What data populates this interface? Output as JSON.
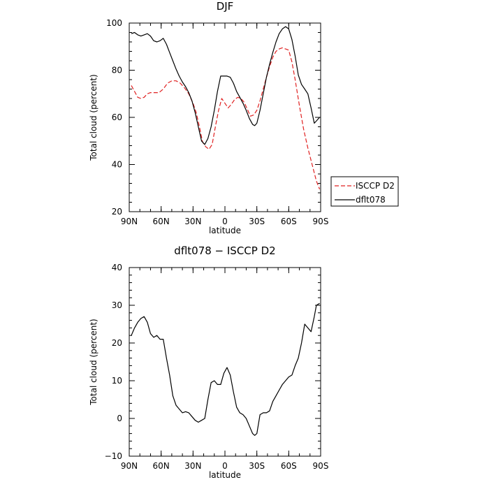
{
  "chart_data": [
    {
      "type": "line",
      "title": "DJF",
      "xlabel": "latitude",
      "ylabel": "Total cloud (percent)",
      "xlim": [
        -90,
        90
      ],
      "ylim": [
        20,
        100
      ],
      "x_ticks": [
        -90,
        -60,
        -30,
        0,
        30,
        60,
        90
      ],
      "x_tick_labels": [
        "90N",
        "60N",
        "30N",
        "0",
        "30S",
        "60S",
        "90S"
      ],
      "y_ticks": [
        20,
        40,
        60,
        80,
        100
      ],
      "y_tick_labels": [
        "20",
        "40",
        "60",
        "80",
        "100"
      ],
      "legend_position": "right",
      "series": [
        {
          "name": "ISCCP D2",
          "color": "#e02020",
          "dash": "dashed",
          "x": [
            -88,
            -85,
            -82,
            -79,
            -76,
            -73,
            -70,
            -66,
            -62,
            -58,
            -54,
            -50,
            -46,
            -42,
            -38,
            -34,
            -30,
            -27,
            -24,
            -21,
            -18,
            -15,
            -12,
            -9,
            -6,
            -3,
            0,
            3,
            6,
            9,
            12,
            15,
            18,
            21,
            24,
            27,
            30,
            33,
            36,
            39,
            42,
            45,
            48,
            51,
            54,
            57,
            60,
            63,
            66,
            70,
            74,
            78,
            82,
            86,
            89
          ],
          "y": [
            73.5,
            71,
            68.5,
            68,
            68.5,
            70,
            70.5,
            70.5,
            70.5,
            72,
            74.5,
            75.5,
            75.5,
            74.5,
            72.5,
            70,
            66,
            62,
            56,
            49.5,
            47.5,
            46.5,
            48.5,
            56,
            63,
            68,
            66,
            64,
            65.5,
            67.5,
            68.5,
            68,
            66.5,
            63.5,
            60.5,
            61,
            63,
            67,
            72,
            77,
            81.5,
            85.5,
            88,
            89,
            89.5,
            89,
            88.5,
            83.5,
            76,
            65,
            55,
            47,
            40,
            33,
            29.5
          ]
        },
        {
          "name": "dflt078",
          "color": "#000000",
          "dash": "solid",
          "x": [
            -88,
            -85,
            -82,
            -79,
            -76,
            -73,
            -70,
            -67,
            -64,
            -61,
            -58,
            -55,
            -52,
            -49,
            -46,
            -43,
            -40,
            -37,
            -34,
            -31,
            -28,
            -25,
            -22,
            -19,
            -16,
            -13,
            -10,
            -7,
            -4,
            -1,
            2,
            5,
            8,
            11,
            14,
            17,
            20,
            23,
            26,
            28,
            30,
            33,
            36,
            39,
            42,
            45,
            48,
            51,
            54,
            57,
            60,
            63,
            66,
            69,
            72,
            75,
            78,
            81,
            84,
            86,
            89
          ],
          "y": [
            95.5,
            96,
            95,
            94.5,
            95,
            95.5,
            94.5,
            92.5,
            92,
            92.5,
            93.5,
            91,
            87.5,
            84,
            80.5,
            77.5,
            75,
            73,
            70.5,
            67,
            62,
            56,
            50,
            48.5,
            51,
            56,
            63,
            71,
            77.5,
            77.5,
            77.5,
            77,
            74.5,
            71,
            68.5,
            66,
            63,
            59.5,
            57,
            56.5,
            57.5,
            63,
            70,
            77,
            82.5,
            87.5,
            92,
            95.5,
            97.5,
            98.5,
            97.5,
            93,
            86,
            78,
            74,
            72,
            70,
            64,
            57.5,
            58.5,
            60
          ]
        }
      ]
    },
    {
      "type": "line",
      "title": "dflt078 − ISCCP D2",
      "xlabel": "latitude",
      "ylabel": "Total cloud (percent)",
      "xlim": [
        -90,
        90
      ],
      "ylim": [
        -10,
        40
      ],
      "x_ticks": [
        -90,
        -60,
        -30,
        0,
        30,
        60,
        90
      ],
      "x_tick_labels": [
        "90N",
        "60N",
        "30N",
        "0",
        "30S",
        "60S",
        "90S"
      ],
      "y_ticks": [
        -10,
        0,
        10,
        20,
        30,
        40
      ],
      "y_tick_labels": [
        "−10",
        "0",
        "10",
        "20",
        "30",
        "40"
      ],
      "series": [
        {
          "name": "",
          "color": "#000000",
          "dash": "solid",
          "x": [
            -88,
            -85,
            -82,
            -79,
            -76,
            -73,
            -70,
            -67,
            -64,
            -61,
            -58,
            -55,
            -52,
            -49,
            -46,
            -43,
            -40,
            -37,
            -34,
            -31,
            -28,
            -25,
            -22,
            -19,
            -16,
            -13,
            -10,
            -7,
            -4,
            -1,
            2,
            5,
            8,
            11,
            14,
            17,
            20,
            23,
            26,
            28,
            30,
            33,
            36,
            39,
            42,
            45,
            48,
            51,
            54,
            57,
            60,
            63,
            66,
            69,
            72,
            75,
            78,
            81,
            84,
            86,
            89
          ],
          "y": [
            22,
            24,
            25.5,
            26.5,
            27,
            25.5,
            22.5,
            21.5,
            22,
            21,
            21,
            16,
            11.5,
            6,
            3.5,
            2.5,
            1.5,
            1.8,
            1.5,
            0.5,
            -0.5,
            -1,
            -0.5,
            0,
            5,
            9.5,
            10,
            9,
            9,
            12,
            13.5,
            11.5,
            7,
            3,
            1.5,
            1,
            0,
            -2,
            -4,
            -4.5,
            -4,
            1,
            1.5,
            1.5,
            2,
            4.5,
            6,
            7.5,
            9,
            10,
            11,
            11.5,
            14,
            16,
            20,
            25,
            24,
            23,
            27,
            30,
            30.5
          ]
        }
      ]
    }
  ]
}
